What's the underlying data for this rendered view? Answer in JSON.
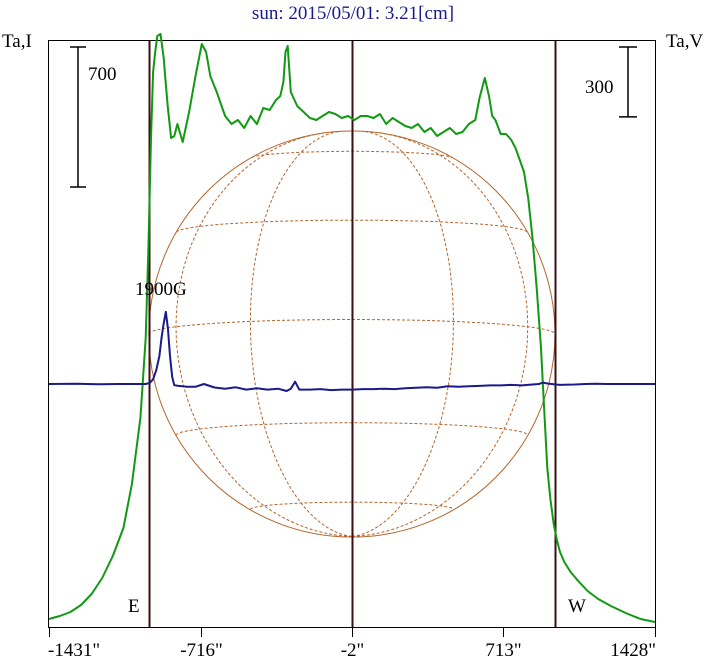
{
  "chart_data": {
    "type": "line",
    "title": "sun: 2015/05/01: 3.21[cm]",
    "left_axis_label": "Ta,I",
    "right_axis_label": "Ta,V",
    "x_unit": "arcsec",
    "xlim": [
      -1431,
      1428
    ],
    "x_ticks": [
      {
        "value": -1431,
        "label": "-1431\""
      },
      {
        "value": -716,
        "label": "-716\""
      },
      {
        "value": -2,
        "label": "-2\""
      },
      {
        "value": 713,
        "label": "713\""
      },
      {
        "value": 1428,
        "label": "1428\""
      }
    ],
    "vertical_lines": [
      {
        "x": -960,
        "name": "east-limb"
      },
      {
        "x": -2,
        "name": "disk-center"
      },
      {
        "x": 958,
        "name": "west-limb"
      }
    ],
    "limb_labels": {
      "east": "E",
      "west": "W"
    },
    "scale_bars": [
      {
        "axis": "left",
        "label": "700",
        "value": 700
      },
      {
        "axis": "right",
        "label": "300",
        "value": 300
      }
    ],
    "annotations": [
      {
        "text": "1900G",
        "x": -885,
        "y_series": "Ta,V"
      }
    ],
    "series": [
      {
        "axis": "left",
        "color": "#119911",
        "y_zero": 0,
        "x": [
          -1431,
          -1380,
          -1330,
          -1280,
          -1230,
          -1180,
          -1130,
          -1080,
          -1040,
          -1000,
          -975,
          -962,
          -950,
          -940,
          -930,
          -920,
          -905,
          -890,
          -880,
          -870,
          -855,
          -840,
          -825,
          -800,
          -770,
          -740,
          -710,
          -690,
          -670,
          -640,
          -600,
          -570,
          -540,
          -510,
          -480,
          -450,
          -420,
          -390,
          -360,
          -340,
          -325,
          -315,
          -305,
          -290,
          -260,
          -230,
          -200,
          -170,
          -140,
          -110,
          -80,
          -50,
          -20,
          10,
          40,
          70,
          100,
          130,
          160,
          190,
          220,
          250,
          280,
          310,
          340,
          370,
          400,
          430,
          460,
          490,
          520,
          550,
          580,
          600,
          625,
          645,
          660,
          675,
          700,
          725,
          750,
          770,
          790,
          810,
          830,
          850,
          870,
          890,
          905,
          920,
          935,
          950,
          965,
          980,
          1000,
          1030,
          1070,
          1110,
          1160,
          1220,
          1290,
          1360,
          1428
        ],
        "y": [
          45,
          60,
          80,
          115,
          170,
          250,
          360,
          500,
          720,
          1050,
          1450,
          1900,
          2450,
          2780,
          2880,
          2960,
          2970,
          2850,
          2720,
          2600,
          2450,
          2460,
          2520,
          2430,
          2580,
          2760,
          2920,
          2880,
          2760,
          2680,
          2560,
          2520,
          2540,
          2500,
          2560,
          2520,
          2600,
          2590,
          2640,
          2660,
          2730,
          2880,
          2910,
          2680,
          2610,
          2580,
          2550,
          2540,
          2560,
          2580,
          2570,
          2550,
          2560,
          2540,
          2560,
          2560,
          2550,
          2570,
          2520,
          2550,
          2530,
          2510,
          2500,
          2520,
          2480,
          2500,
          2460,
          2480,
          2500,
          2470,
          2480,
          2520,
          2540,
          2650,
          2750,
          2660,
          2560,
          2540,
          2470,
          2470,
          2440,
          2400,
          2340,
          2280,
          2150,
          1950,
          1700,
          1400,
          1100,
          800,
          640,
          520,
          440,
          380,
          330,
          280,
          230,
          185,
          145,
          110,
          75,
          45,
          30
        ]
      },
      {
        "axis": "right",
        "color": "#1a1a8c",
        "y_zero": 0,
        "x": [
          -1431,
          -1300,
          -1200,
          -1100,
          -1000,
          -975,
          -955,
          -940,
          -925,
          -910,
          -900,
          -890,
          -880,
          -870,
          -860,
          -850,
          -840,
          -820,
          -800,
          -780,
          -740,
          -700,
          -650,
          -600,
          -550,
          -500,
          -450,
          -400,
          -350,
          -310,
          -290,
          -270,
          -250,
          -200,
          -150,
          -100,
          -50,
          -2,
          50,
          100,
          150,
          200,
          250,
          300,
          350,
          400,
          450,
          500,
          550,
          600,
          650,
          700,
          750,
          800,
          850,
          880,
          900,
          920,
          940,
          960,
          980,
          1000,
          1050,
          1100,
          1150,
          1200,
          1300,
          1428
        ],
        "y": [
          0,
          1,
          -1,
          0,
          0,
          0,
          5,
          20,
          60,
          120,
          200,
          260,
          310,
          240,
          120,
          30,
          -5,
          -8,
          -10,
          -12,
          -12,
          0,
          -15,
          -20,
          -14,
          -24,
          -18,
          -24,
          -20,
          -30,
          -20,
          10,
          -24,
          -24,
          -22,
          -26,
          -24,
          -24,
          -22,
          -22,
          -20,
          -22,
          -18,
          -16,
          -14,
          -16,
          -10,
          -12,
          -10,
          -8,
          -6,
          -6,
          -4,
          -6,
          -2,
          0,
          6,
          2,
          0,
          -2,
          -4,
          -3,
          -2,
          0,
          1,
          0,
          0,
          0
        ]
      }
    ],
    "solar_disk": {
      "type": "heliographic-grid",
      "color": "#b5652c",
      "center_x": -2,
      "radius": 958,
      "b0_deg": -4.1,
      "latitudes_deg": [
        -60,
        -30,
        0,
        30,
        60
      ],
      "longitudes_deg": [
        -60,
        -30,
        0,
        30,
        60
      ]
    },
    "grid": false,
    "legend": "none"
  }
}
